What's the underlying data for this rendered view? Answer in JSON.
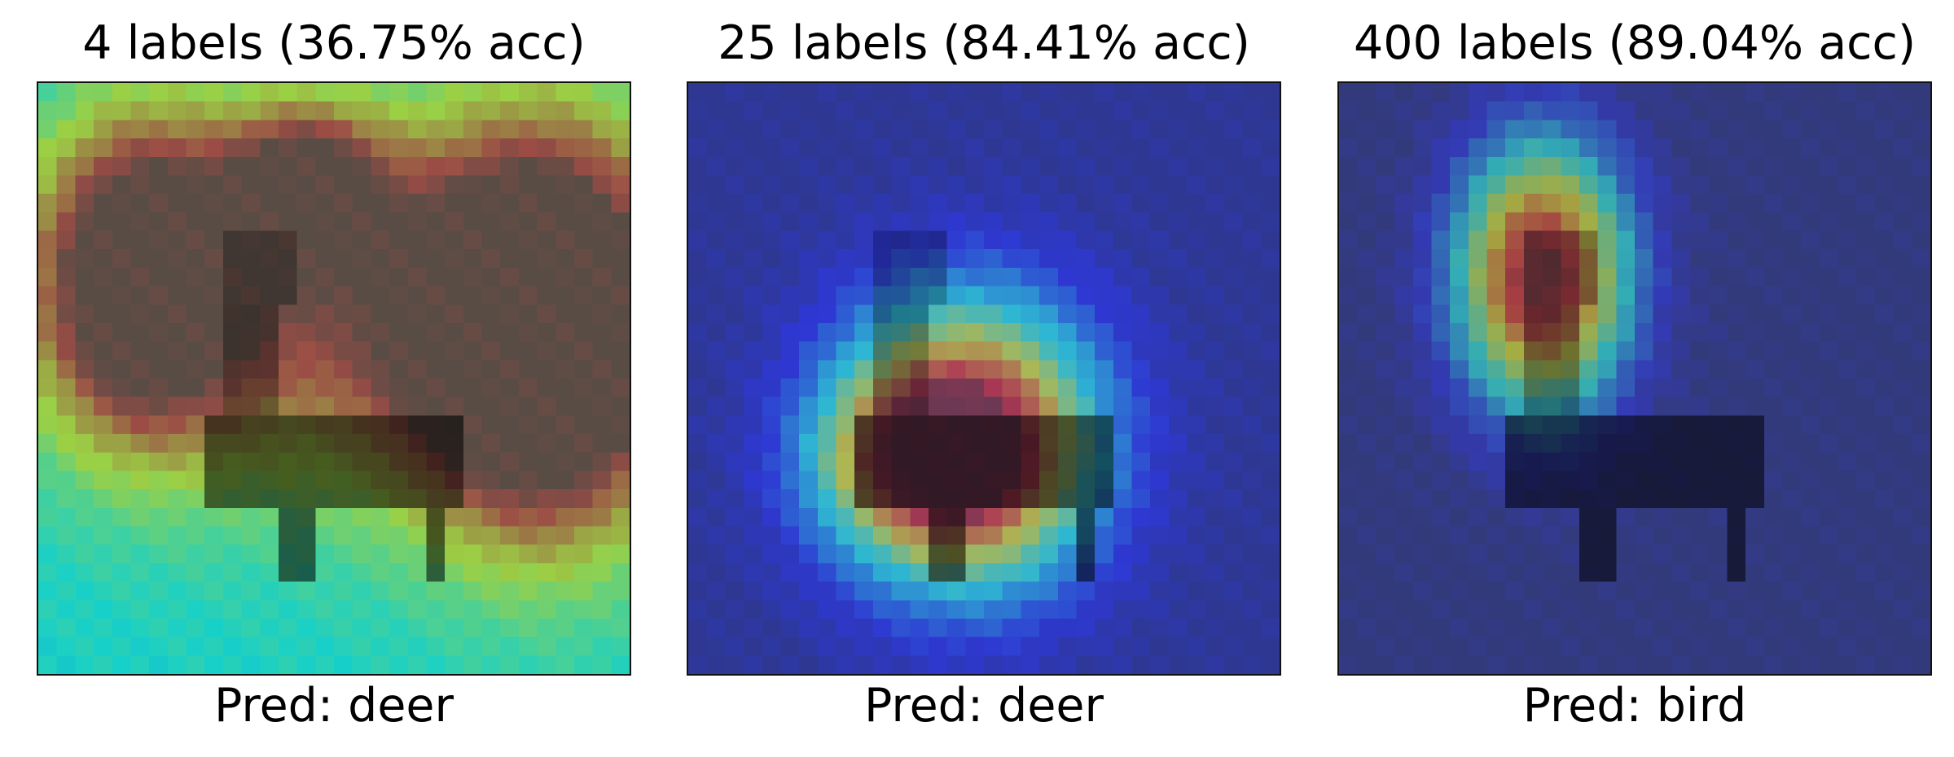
{
  "panels": [
    {
      "title": "4 labels (36.75% acc)",
      "caption": "Pred: deer",
      "background": "#2f9e8f",
      "hotspots": [
        {
          "cx": 14,
          "cy": 5,
          "sx": 3.0,
          "sy": 3.0,
          "w": 0.55
        },
        {
          "cx": 27,
          "cy": 13,
          "sx": 5.0,
          "sy": 7.5,
          "w": 1.0
        },
        {
          "cx": 5,
          "cy": 10,
          "sx": 4.0,
          "sy": 6.0,
          "w": 0.78
        },
        {
          "cx": 16,
          "cy": 12,
          "sx": 9.0,
          "sy": 7.0,
          "w": 0.45
        }
      ],
      "bias": 0.38,
      "overlay_alpha": 0.52
    },
    {
      "title": "25 labels (84.41% acc)",
      "caption": "Pred: deer",
      "background": "#5b6fa6",
      "hotspots": [
        {
          "cx": 14.5,
          "cy": 19,
          "sx": 5.0,
          "sy": 5.5,
          "w": 1.0
        },
        {
          "cx": 12,
          "cy": 20,
          "sx": 4.0,
          "sy": 3.0,
          "w": 0.35
        }
      ],
      "bias": 0.0,
      "overlay_alpha": 0.5
    },
    {
      "title": "400 labels (89.04% acc)",
      "caption": "Pred: bird",
      "background": "#5c6a78",
      "hotspots": [
        {
          "cx": 10.5,
          "cy": 10,
          "sx": 3.2,
          "sy": 5.0,
          "w": 1.0
        }
      ],
      "bias": 0.0,
      "overlay_alpha": 0.45
    }
  ]
}
